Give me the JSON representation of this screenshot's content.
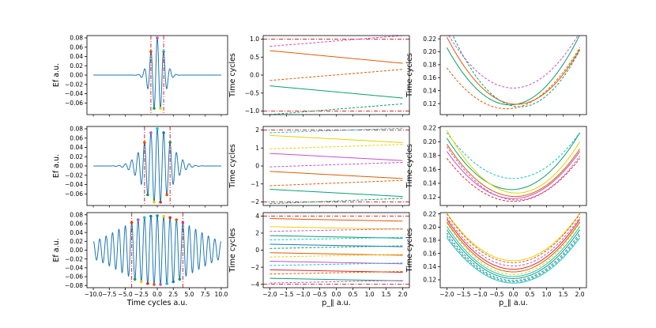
{
  "chart_data": [
    {
      "id": "r0c0",
      "type": "line",
      "xlim": [
        -11,
        11
      ],
      "ylim": [
        -0.085,
        0.085
      ],
      "yticks": [
        0.08,
        0.06,
        0.04,
        0.02,
        0.0,
        -0.02,
        -0.04,
        -0.06
      ],
      "ytick_labels": [
        "0.08",
        "0.06",
        "0.04",
        "0.02",
        "0.00",
        "−0.02",
        "−0.04",
        "−0.06"
      ],
      "xticks": [],
      "xtick_labels": [],
      "ylabel": "Ef a.u.",
      "xlabel": "",
      "field": {
        "amplitude": 0.08,
        "sigma": 1.05,
        "period": 1.0
      },
      "vlines": [
        -1.0,
        1.0
      ]
    },
    {
      "id": "r0c1",
      "type": "line",
      "xlim": [
        -2.2,
        2.2
      ],
      "ylim": [
        -1.1,
        1.1
      ],
      "yticks": [
        1.0,
        0.5,
        0.0,
        -0.5,
        -1.0
      ],
      "ytick_labels": [
        "1.0",
        "0.5",
        "0.0",
        "−0.5",
        "−1.0"
      ],
      "xticks": [],
      "xtick_labels": [],
      "ylabel": "Time cycles",
      "xlabel": "",
      "hlines": [
        1.0,
        -1.0
      ],
      "series": [
        {
          "name": "orange",
          "x": [
            -2,
            2
          ],
          "y": [
            0.68,
            0.33
          ],
          "color": "#e05a00",
          "dash": "solid"
        },
        {
          "name": "orange-dashed",
          "x": [
            -2,
            2
          ],
          "y": [
            -0.15,
            0.16
          ],
          "color": "#e05a00",
          "dash": "dashed"
        },
        {
          "name": "green",
          "x": [
            -2,
            2
          ],
          "y": [
            -0.3,
            -0.64
          ],
          "color": "#0b9e6e",
          "dash": "solid"
        },
        {
          "name": "green-dashed",
          "x": [
            -2,
            2
          ],
          "y": [
            -1.1,
            -0.8
          ],
          "color": "#0b9e6e",
          "dash": "dashed"
        },
        {
          "name": "magenta-dashed",
          "x": [
            -2,
            2
          ],
          "y": [
            0.8,
            1.1
          ],
          "color": "#c64fc6",
          "dash": "dashed"
        }
      ]
    },
    {
      "id": "r0c2",
      "type": "line",
      "xlim": [
        -2.2,
        2.2
      ],
      "ylim": [
        0.103,
        0.225
      ],
      "yticks": [
        0.22,
        0.2,
        0.18,
        0.16,
        0.14,
        0.12
      ],
      "ytick_labels": [
        "0.22",
        "0.20",
        "0.18",
        "0.16",
        "0.14",
        "0.12"
      ],
      "xticks": [],
      "xtick_labels": [],
      "ylabel": "Time cycles",
      "xlabel": "",
      "series": [
        {
          "name": "green",
          "x0": -0.1,
          "ymin": 0.118,
          "k": 0.0245,
          "color": "#0b9e6e",
          "dash": "solid"
        },
        {
          "name": "orange",
          "x0": 0.1,
          "ymin": 0.119,
          "k": 0.0235,
          "color": "#e05a00",
          "dash": "solid"
        },
        {
          "name": "green-dashed",
          "x0": 0.2,
          "ymin": 0.115,
          "k": 0.027,
          "color": "#0b9e6e",
          "dash": "dashed"
        },
        {
          "name": "orange-dashed",
          "x0": -0.2,
          "ymin": 0.112,
          "k": 0.0195,
          "color": "#e05a00",
          "dash": "dashed"
        },
        {
          "name": "magenta-dashed",
          "x0": 0.0,
          "ymin": 0.144,
          "k": 0.0215,
          "color": "#c64fc6",
          "dash": "dashed"
        }
      ]
    },
    {
      "id": "r1c0",
      "type": "line",
      "xlim": [
        -11,
        11
      ],
      "ylim": [
        -0.085,
        0.085
      ],
      "yticks": [
        0.08,
        0.06,
        0.04,
        0.02,
        0.0,
        -0.02,
        -0.04,
        -0.06
      ],
      "ytick_labels": [
        "0.08",
        "0.06",
        "0.04",
        "0.02",
        "0.00",
        "−0.02",
        "−0.04",
        "−0.06"
      ],
      "xticks": [],
      "xtick_labels": [],
      "ylabel": "Ef a.u.",
      "xlabel": "",
      "field": {
        "amplitude": 0.08,
        "sigma": 2.1,
        "period": 1.0
      },
      "vlines": [
        -2.0,
        2.0
      ]
    },
    {
      "id": "r1c1",
      "type": "line",
      "xlim": [
        -2.2,
        2.2
      ],
      "ylim": [
        -2.2,
        2.2
      ],
      "yticks": [
        2,
        1,
        0,
        -1,
        -2
      ],
      "ytick_labels": [
        "2",
        "1",
        "0",
        "−1",
        "−2"
      ],
      "xticks": [],
      "xtick_labels": [],
      "ylabel": "Time cycles",
      "xlabel": "",
      "hlines": [
        2.0,
        -2.0
      ],
      "series": [
        {
          "name": "yellow",
          "x": [
            -2,
            2
          ],
          "y": [
            1.7,
            1.3
          ],
          "color": "#e6d000",
          "dash": "solid"
        },
        {
          "name": "yellow-dashed",
          "x": [
            -2,
            2
          ],
          "y": [
            0.95,
            1.2
          ],
          "color": "#e6d000",
          "dash": "dashed"
        },
        {
          "name": "magenta",
          "x": [
            -2,
            2
          ],
          "y": [
            0.7,
            0.3
          ],
          "color": "#c64fc6",
          "dash": "solid"
        },
        {
          "name": "magenta-dashed",
          "x": [
            -2,
            2
          ],
          "y": [
            -0.05,
            0.2
          ],
          "color": "#c64fc6",
          "dash": "dashed"
        },
        {
          "name": "orange",
          "x": [
            -2,
            2
          ],
          "y": [
            -0.3,
            -0.7
          ],
          "color": "#e05a00",
          "dash": "solid"
        },
        {
          "name": "orange-dashed",
          "x": [
            -2,
            2
          ],
          "y": [
            -1.1,
            -0.8
          ],
          "color": "#e05a00",
          "dash": "dashed"
        },
        {
          "name": "green",
          "x": [
            -2,
            2
          ],
          "y": [
            -1.3,
            -1.7
          ],
          "color": "#0b9e6e",
          "dash": "solid"
        },
        {
          "name": "green-dashed",
          "x": [
            -2,
            2
          ],
          "y": [
            -2.1,
            -1.8
          ],
          "color": "#0b9e6e",
          "dash": "dashed"
        },
        {
          "name": "cyan-dashed",
          "x": [
            -2,
            2
          ],
          "y": [
            1.85,
            2.1
          ],
          "color": "#17becf",
          "dash": "dashed"
        }
      ]
    },
    {
      "id": "r1c2",
      "type": "line",
      "xlim": [
        -2.2,
        2.2
      ],
      "ylim": [
        0.108,
        0.222
      ],
      "yticks": [
        0.22,
        0.2,
        0.18,
        0.16,
        0.14,
        0.12
      ],
      "ytick_labels": [
        "0.22",
        "0.20",
        "0.18",
        "0.16",
        "0.14",
        "0.12"
      ],
      "xticks": [],
      "xtick_labels": [],
      "ylabel": "Time cycles",
      "xlabel": "",
      "series": [
        {
          "name": "cyan-dashed",
          "x0": 0.0,
          "ymin": 0.147,
          "k": 0.0165,
          "color": "#17becf",
          "dash": "dashed"
        },
        {
          "name": "green",
          "x0": -0.05,
          "ymin": 0.131,
          "k": 0.0195,
          "color": "#0b9e6e",
          "dash": "solid"
        },
        {
          "name": "yellow",
          "x0": 0.1,
          "ymin": 0.126,
          "k": 0.0205,
          "color": "#e6d000",
          "dash": "solid"
        },
        {
          "name": "orange",
          "x0": 0.05,
          "ymin": 0.121,
          "k": 0.018,
          "color": "#e05a00",
          "dash": "solid"
        },
        {
          "name": "magenta",
          "x0": 0.0,
          "ymin": 0.118,
          "k": 0.017,
          "color": "#c64fc6",
          "dash": "solid"
        },
        {
          "name": "red-dashed",
          "x0": 0.0,
          "ymin": 0.114,
          "k": 0.0155,
          "color": "#d62728",
          "dash": "dashed"
        },
        {
          "name": "magenta-dashed",
          "x0": 0.1,
          "ymin": 0.116,
          "k": 0.0175,
          "color": "#c64fc6",
          "dash": "dashed"
        }
      ]
    },
    {
      "id": "r2c0",
      "type": "line",
      "xlim": [
        -11,
        11
      ],
      "ylim": [
        -0.085,
        0.085
      ],
      "yticks": [
        0.08,
        0.06,
        0.04,
        0.02,
        0.0,
        -0.02,
        -0.04,
        -0.06,
        -0.08
      ],
      "ytick_labels": [
        "0.08",
        "0.06",
        "0.04",
        "0.02",
        "0.00",
        "−0.02",
        "−0.04",
        "−0.06",
        "−0.08"
      ],
      "xticks": [
        -10.0,
        -7.5,
        -5.0,
        -2.5,
        0.0,
        2.5,
        5.0,
        7.5,
        10.0
      ],
      "xtick_labels": [
        "−10.0",
        "−7.5",
        "−5.0",
        "−2.5",
        "0.0",
        "2.5",
        "5.0",
        "7.5",
        "10.0"
      ],
      "ylabel": "Ef a.u.",
      "xlabel": "Time cycles a.u.",
      "field": {
        "amplitude": 0.078,
        "sigma": 6.0,
        "period": 1.0
      },
      "vlines": [
        -4.0,
        4.0
      ]
    },
    {
      "id": "r2c1",
      "type": "line",
      "xlim": [
        -2.2,
        2.2
      ],
      "ylim": [
        -4.4,
        4.4
      ],
      "yticks": [
        4,
        2,
        0,
        -2,
        -4
      ],
      "ytick_labels": [
        "4",
        "2",
        "0",
        "−2",
        "−4"
      ],
      "xticks": [
        -2.0,
        -1.5,
        -1.0,
        -0.5,
        0.0,
        0.5,
        1.0,
        1.5,
        2.0
      ],
      "xtick_labels": [
        "−2.0",
        "−1.5",
        "−1.0",
        "−0.5",
        "0.0",
        "0.5",
        "1.0",
        "1.5",
        "2.0"
      ],
      "ylabel": "Time cycles",
      "xlabel": "p_∥ a.u.",
      "hlines": [
        4.0,
        -4.0
      ],
      "series": [
        {
          "name": "s1",
          "x": [
            -2,
            2
          ],
          "y": [
            3.7,
            3.4
          ],
          "color": "#e05a00",
          "dash": "solid"
        },
        {
          "name": "s2",
          "x": [
            -2,
            2
          ],
          "y": [
            2.75,
            2.45
          ],
          "color": "#e6d000",
          "dash": "solid"
        },
        {
          "name": "s3",
          "x": [
            -2,
            2
          ],
          "y": [
            2.2,
            2.5
          ],
          "color": "#c64fc6",
          "dash": "dashed"
        },
        {
          "name": "s4",
          "x": [
            -2,
            2
          ],
          "y": [
            1.7,
            1.4
          ],
          "color": "#0b9e6e",
          "dash": "solid"
        },
        {
          "name": "s5",
          "x": [
            -2,
            2
          ],
          "y": [
            1.2,
            1.5
          ],
          "color": "#17becf",
          "dash": "dashed"
        },
        {
          "name": "s6",
          "x": [
            -2,
            2
          ],
          "y": [
            0.7,
            0.4
          ],
          "color": "#1f77b4",
          "dash": "solid"
        },
        {
          "name": "s7",
          "x": [
            -2,
            2
          ],
          "y": [
            0.2,
            0.5
          ],
          "color": "#0b9e6e",
          "dash": "dashed"
        },
        {
          "name": "s8",
          "x": [
            -2,
            2
          ],
          "y": [
            -0.3,
            -0.6
          ],
          "color": "#e05a00",
          "dash": "solid"
        },
        {
          "name": "s9",
          "x": [
            -2,
            2
          ],
          "y": [
            -0.8,
            -0.5
          ],
          "color": "#e6d000",
          "dash": "dashed"
        },
        {
          "name": "s10",
          "x": [
            -2,
            2
          ],
          "y": [
            -1.3,
            -1.6
          ],
          "color": "#c64fc6",
          "dash": "solid"
        },
        {
          "name": "s11",
          "x": [
            -2,
            2
          ],
          "y": [
            -1.8,
            -1.5
          ],
          "color": "#17becf",
          "dash": "dashed"
        },
        {
          "name": "s12",
          "x": [
            -2,
            2
          ],
          "y": [
            -2.3,
            -2.6
          ],
          "color": "#d62728",
          "dash": "solid"
        },
        {
          "name": "s13",
          "x": [
            -2,
            2
          ],
          "y": [
            -2.8,
            -2.5
          ],
          "color": "#e05a00",
          "dash": "dashed"
        },
        {
          "name": "s14",
          "x": [
            -2,
            2
          ],
          "y": [
            -3.3,
            -3.6
          ],
          "color": "#0b9e6e",
          "dash": "solid"
        },
        {
          "name": "s15",
          "x": [
            -2,
            2
          ],
          "y": [
            -3.85,
            -3.55
          ],
          "color": "#c64fc6",
          "dash": "dashed"
        }
      ]
    },
    {
      "id": "r2c2",
      "type": "line",
      "xlim": [
        -2.2,
        2.2
      ],
      "ylim": [
        0.108,
        0.222
      ],
      "yticks": [
        0.22,
        0.2,
        0.18,
        0.16,
        0.14,
        0.12
      ],
      "ytick_labels": [
        "0.22",
        "0.20",
        "0.18",
        "0.16",
        "0.14",
        "0.12"
      ],
      "xticks": [
        -2.0,
        -1.5,
        -1.0,
        -0.5,
        0.0,
        0.5,
        1.0,
        1.5,
        2.0
      ],
      "xtick_labels": [
        "−2.0",
        "−1.5",
        "−1.0",
        "−0.5",
        "0.0",
        "0.5",
        "1.0",
        "1.5",
        "2.0"
      ],
      "ylabel": "Time cycles",
      "xlabel": "p_∥ a.u.",
      "series": [
        {
          "name": "c1",
          "x0": 0.0,
          "ymin": 0.149,
          "k": 0.018,
          "color": "#e6d000",
          "dash": "solid"
        },
        {
          "name": "c2",
          "x0": 0.0,
          "ymin": 0.146,
          "k": 0.0185,
          "color": "#e05a00",
          "dash": "dashed"
        },
        {
          "name": "c3",
          "x0": 0.0,
          "ymin": 0.141,
          "k": 0.0185,
          "color": "#c64fc6",
          "dash": "dashed"
        },
        {
          "name": "c4",
          "x0": 0.0,
          "ymin": 0.136,
          "k": 0.019,
          "color": "#d62728",
          "dash": "solid"
        },
        {
          "name": "c5",
          "x0": 0.0,
          "ymin": 0.132,
          "k": 0.019,
          "color": "#e05a00",
          "dash": "solid"
        },
        {
          "name": "c6",
          "x0": 0.0,
          "ymin": 0.128,
          "k": 0.0195,
          "color": "#e6d000",
          "dash": "dashed"
        },
        {
          "name": "c7",
          "x0": 0.0,
          "ymin": 0.125,
          "k": 0.019,
          "color": "#17becf",
          "dash": "solid"
        },
        {
          "name": "c8",
          "x0": 0.0,
          "ymin": 0.122,
          "k": 0.0185,
          "color": "#0b9e6e",
          "dash": "solid"
        },
        {
          "name": "c9",
          "x0": 0.0,
          "ymin": 0.119,
          "k": 0.018,
          "color": "#1f77b4",
          "dash": "dashed"
        },
        {
          "name": "c10",
          "x0": 0.0,
          "ymin": 0.117,
          "k": 0.0175,
          "color": "#0b9e6e",
          "dash": "dashed"
        },
        {
          "name": "c11",
          "x0": 0.0,
          "ymin": 0.115,
          "k": 0.0172,
          "color": "#17becf",
          "dash": "solid"
        }
      ]
    }
  ],
  "style": {
    "field_color": "#1f77b4",
    "vline_color": "#d62728",
    "marker_colors": [
      "#e05a00",
      "#0b9e6e",
      "#c64fc6",
      "#e6d000",
      "#17becf",
      "#d62728",
      "#1f77b4"
    ]
  }
}
